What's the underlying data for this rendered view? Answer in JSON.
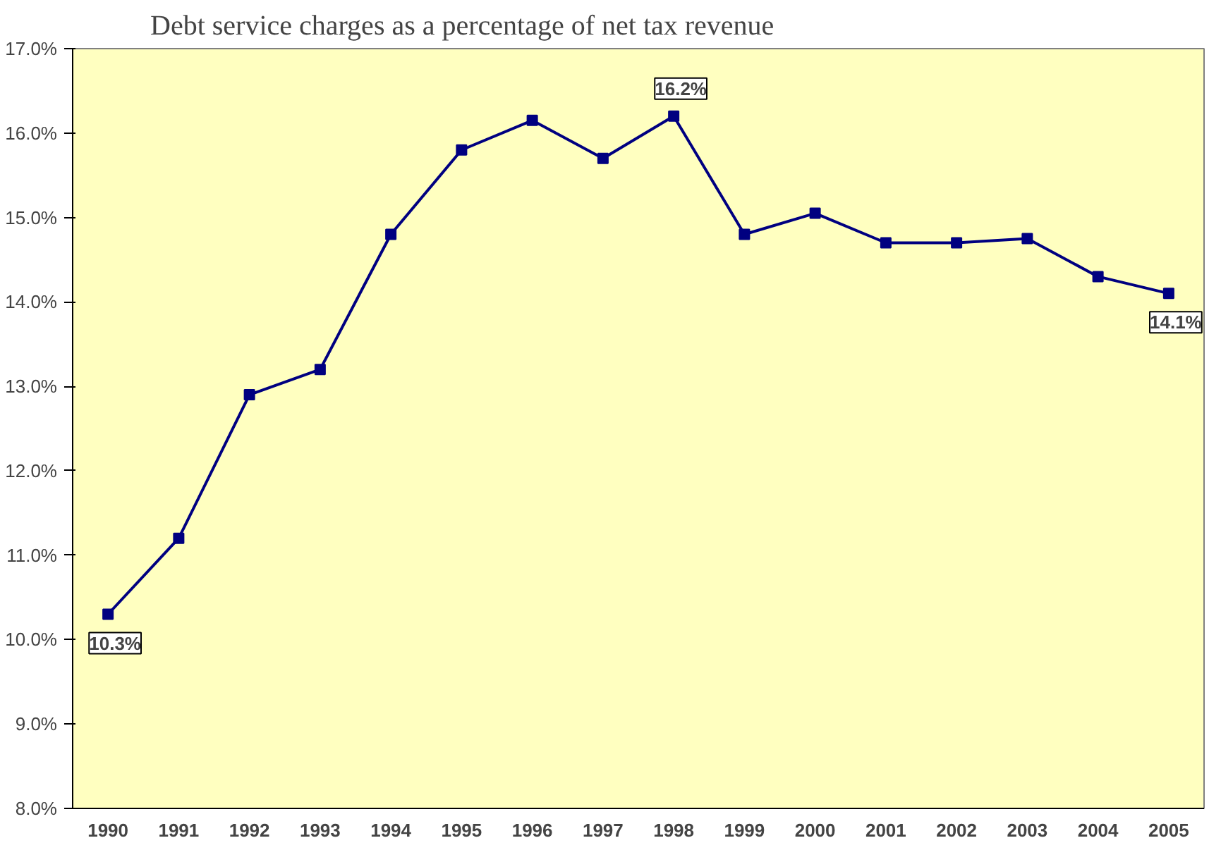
{
  "chart_data": {
    "type": "line",
    "title": "Debt service charges as a percentage of net tax revenue",
    "categories": [
      "1990",
      "1991",
      "1992",
      "1993",
      "1994",
      "1995",
      "1996",
      "1997",
      "1998",
      "1999",
      "2000",
      "2001",
      "2002",
      "2003",
      "2004",
      "2005"
    ],
    "series": [
      {
        "color": "#000080",
        "values": [
          10.3,
          11.2,
          12.9,
          13.2,
          14.8,
          15.8,
          16.15,
          15.7,
          16.2,
          14.8,
          15.05,
          14.7,
          14.7,
          14.75,
          14.3,
          14.1
        ],
        "value_labels": [
          "10.3%",
          null,
          null,
          null,
          null,
          null,
          null,
          null,
          "16.2%",
          null,
          null,
          null,
          null,
          null,
          null,
          "14.1%"
        ]
      }
    ],
    "ylim": [
      8,
      17
    ],
    "yticks": [
      {
        "value": 8,
        "label": "8.0%"
      },
      {
        "value": 9,
        "label": "9.0%"
      },
      {
        "value": 10,
        "label": "10.0%"
      },
      {
        "value": 11,
        "label": "11.0%"
      },
      {
        "value": 12,
        "label": "12.0%"
      },
      {
        "value": 13,
        "label": "13.0%"
      },
      {
        "value": 14,
        "label": "14.0%"
      },
      {
        "value": 15,
        "label": "15.0%"
      },
      {
        "value": 16,
        "label": "16.0%"
      },
      {
        "value": 17,
        "label": "17.0%"
      }
    ],
    "grid": false,
    "marker": "square",
    "line_style": "solid"
  }
}
